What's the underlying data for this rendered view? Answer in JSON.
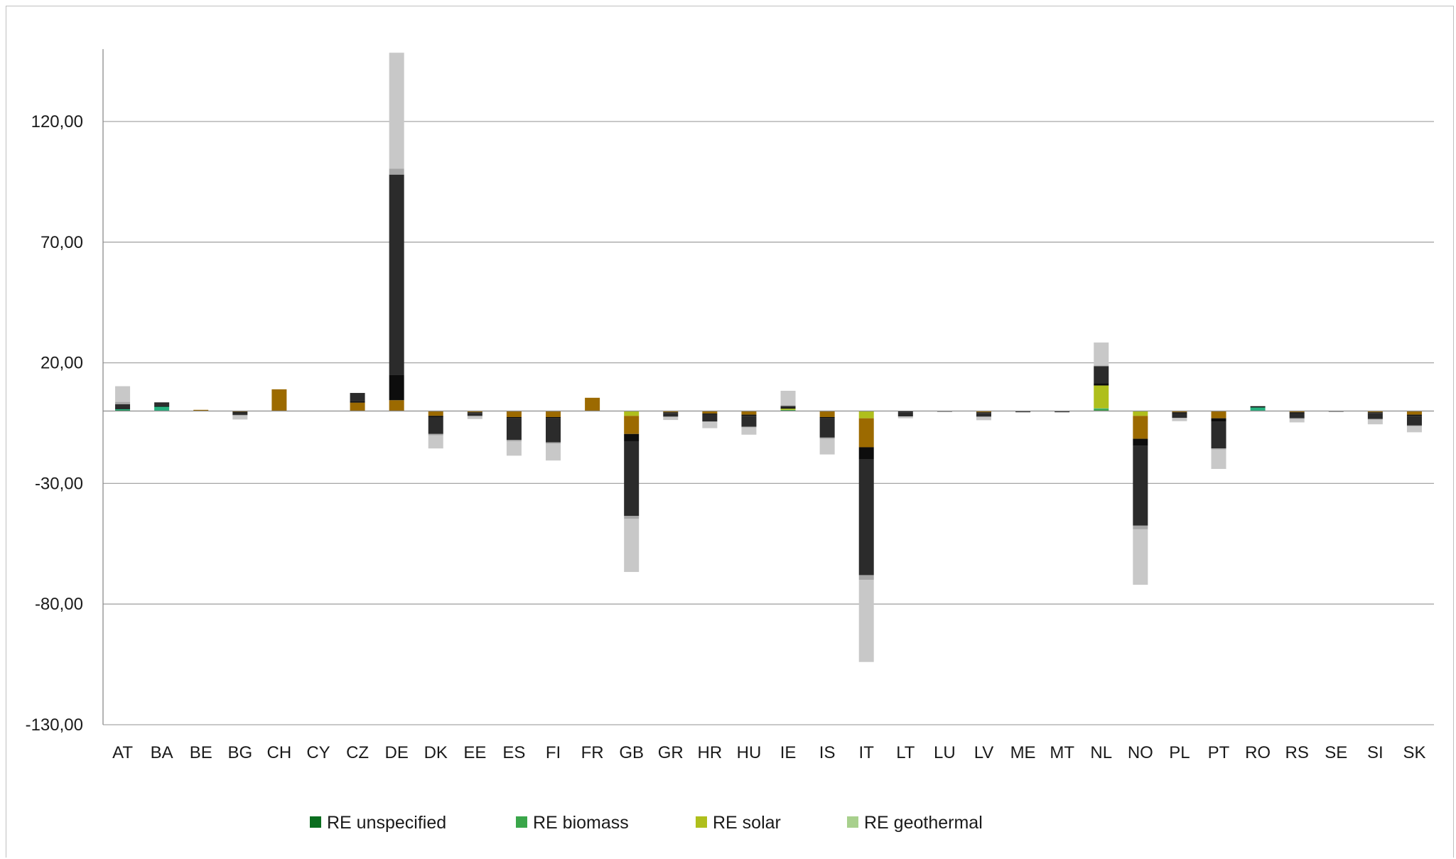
{
  "chart_data": {
    "type": "bar",
    "stacked": true,
    "title": "",
    "xlabel": "",
    "ylabel": "",
    "ylim": [
      -130,
      150
    ],
    "yticks": [
      -130,
      -80,
      -30,
      20,
      70,
      120
    ],
    "ytick_labels": [
      "-130,00",
      "-80,00",
      "-30,00",
      "20,00",
      "70,00",
      "120,00"
    ],
    "grid": true,
    "legend_position": "bottom",
    "categories": [
      "AT",
      "BA",
      "BE",
      "BG",
      "CH",
      "CY",
      "CZ",
      "DE",
      "DK",
      "EE",
      "ES",
      "FI",
      "FR",
      "GB",
      "GR",
      "HR",
      "HU",
      "IE",
      "IS",
      "IT",
      "LT",
      "LU",
      "LV",
      "ME",
      "MT",
      "NL",
      "NO",
      "PL",
      "PT",
      "RO",
      "RS",
      "SE",
      "SI",
      "SK"
    ],
    "series": [
      {
        "name": "RE unspecified",
        "color": "#0b6e1f",
        "legend": true,
        "values": [
          0.3,
          0,
          0,
          0,
          0,
          0,
          0,
          0,
          0,
          0,
          0,
          0,
          0,
          0,
          0,
          0,
          0,
          0,
          0,
          0,
          0,
          0,
          0,
          0,
          0,
          0,
          0,
          0,
          0,
          0,
          0,
          0,
          0,
          0
        ]
      },
      {
        "name": "RE biomass",
        "color": "#3aa64a",
        "legend": true,
        "values": [
          0,
          0,
          0,
          0,
          0,
          0,
          0,
          0,
          0,
          0,
          0,
          0,
          0,
          0,
          0,
          0,
          0,
          0.5,
          0,
          0,
          0,
          0,
          0,
          0,
          0,
          0.8,
          0,
          0,
          0,
          0,
          0,
          0,
          0,
          0
        ]
      },
      {
        "name": "",
        "color": "#27b07e",
        "legend": false,
        "values": [
          0.5,
          1.8,
          0,
          0,
          0,
          0,
          0,
          0,
          0,
          0,
          0,
          0,
          0,
          0,
          0,
          0,
          0,
          0,
          0,
          0,
          0,
          0,
          0,
          0,
          0,
          0.3,
          0,
          0,
          0,
          1.5,
          0,
          0,
          0,
          0
        ]
      },
      {
        "name": "RE solar",
        "color": "#afbf1c",
        "legend": true,
        "values": [
          0,
          0,
          0,
          0,
          0,
          0,
          0,
          0,
          0,
          0,
          0,
          0,
          0,
          -2,
          0,
          0,
          0,
          0.5,
          0,
          -3,
          0,
          0,
          0,
          0,
          0,
          9.5,
          -2,
          0,
          0,
          0,
          0,
          0,
          0,
          0
        ]
      },
      {
        "name": "RE geothermal",
        "color": "#a8d08d",
        "legend": true,
        "values": [
          0,
          0,
          0,
          0,
          0,
          0,
          0,
          0,
          0,
          0,
          0,
          0,
          0,
          0,
          0,
          0,
          0,
          0,
          0,
          0,
          0,
          0,
          0,
          0,
          0,
          0,
          0,
          0,
          0,
          0,
          0,
          0,
          0,
          0
        ]
      },
      {
        "name": "",
        "color": "#9c6a00",
        "legend": false,
        "values": [
          0,
          0,
          0.5,
          -0.3,
          9,
          0,
          3.5,
          4.5,
          -2,
          -0.5,
          -2.5,
          -2.5,
          5.5,
          -7.5,
          -0.5,
          -1,
          -1.5,
          0,
          -2.5,
          -12,
          0,
          0,
          -0.5,
          0,
          0,
          0,
          -9.5,
          -0.5,
          -3,
          0,
          -0.5,
          0,
          -0.5,
          -1.5
        ]
      },
      {
        "name": "",
        "color": "#0d0d0d",
        "legend": false,
        "values": [
          0.5,
          0.5,
          0,
          -0.3,
          0,
          0,
          0.5,
          10.5,
          -0.5,
          -0.3,
          -0.5,
          -0.5,
          0,
          -3,
          -0.3,
          -0.3,
          -0.5,
          0.5,
          -0.5,
          -5,
          -0.5,
          0,
          -0.3,
          -0.2,
          -0.2,
          1,
          -3,
          -0.5,
          -1.5,
          0.5,
          -0.5,
          0,
          -0.3,
          -0.5
        ]
      },
      {
        "name": "",
        "color": "#2b2b2b",
        "legend": false,
        "values": [
          1.5,
          1.3,
          0,
          -1,
          0,
          0,
          3.5,
          83,
          -7,
          -1.2,
          -9,
          -10,
          0,
          -31,
          -1.5,
          -3,
          -4.5,
          0.6,
          -8,
          -48,
          -1.7,
          -0.3,
          -1.5,
          -0.3,
          -0.3,
          7,
          -33,
          -1.8,
          -11,
          0,
          -2,
          -0.3,
          -2.5,
          -4
        ]
      },
      {
        "name": "",
        "color": "#a6a6a6",
        "legend": false,
        "values": [
          1,
          0,
          0,
          -0.4,
          0,
          0,
          0,
          2.5,
          -0.5,
          -0.3,
          -0.5,
          -0.5,
          0,
          -1.2,
          -0.2,
          -0.3,
          -0.3,
          0.3,
          -0.5,
          -2,
          0,
          0,
          -0.2,
          0,
          0,
          0.3,
          -1.5,
          -0.2,
          -0.5,
          0,
          -0.2,
          0,
          -0.2,
          -0.3
        ]
      },
      {
        "name": "",
        "color": "#c8c8c8",
        "legend": false,
        "values": [
          6.5,
          0,
          0,
          -1.5,
          0,
          0,
          0,
          48,
          -5.5,
          -1,
          -6,
          -7,
          0,
          -22,
          -1.2,
          -2.5,
          -3,
          6,
          -6.5,
          -34,
          -0.8,
          0,
          -1.3,
          0,
          0,
          9.5,
          -23,
          -1.2,
          -8,
          0,
          -1.5,
          0,
          -2,
          -2.5
        ]
      }
    ]
  }
}
